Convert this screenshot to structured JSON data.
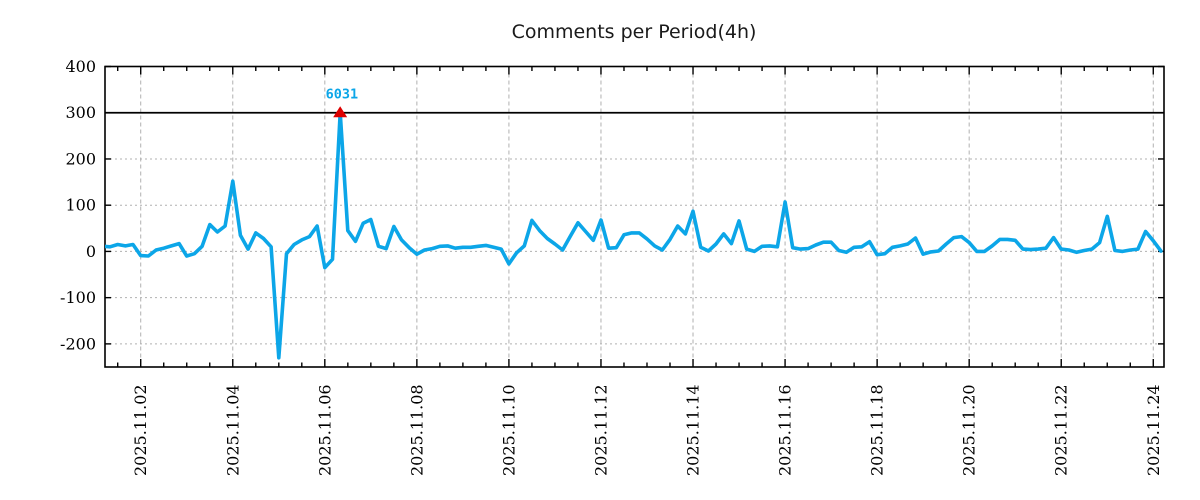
{
  "chart": {
    "title": "Comments per Period(4h)"
  },
  "chart_data": {
    "type": "line",
    "title": "Comments per Period(4h)",
    "series_name": "comments-per-4h",
    "start": "2025-11-01 04:00",
    "interval_hours": 4,
    "values": [
      11,
      10,
      15,
      12,
      15,
      -9,
      -10,
      3,
      7,
      12,
      17,
      -10,
      -5,
      11,
      58,
      42,
      55,
      152,
      35,
      5,
      40,
      28,
      10,
      -230,
      -5,
      15,
      25,
      32,
      55,
      -35,
      -17,
      300,
      45,
      22,
      61,
      69,
      11,
      6,
      54,
      25,
      8,
      -6,
      3,
      6,
      11,
      12,
      7,
      9,
      9,
      11,
      13,
      9,
      5,
      -27,
      -3,
      12,
      67,
      45,
      28,
      16,
      3,
      33,
      62,
      43,
      24,
      68,
      7,
      8,
      36,
      40,
      40,
      27,
      12,
      3,
      26,
      55,
      38,
      87,
      9,
      1,
      16,
      38,
      17,
      66,
      5,
      0,
      11,
      12,
      10,
      107,
      8,
      5,
      6,
      14,
      20,
      20,
      2,
      -2,
      9,
      10,
      21,
      -7,
      -5,
      9,
      12,
      16,
      29,
      -6,
      -1,
      1,
      16,
      30,
      32,
      19,
      0,
      0,
      12,
      26,
      26,
      24,
      5,
      4,
      5,
      7,
      30,
      5,
      3,
      -2,
      2,
      5,
      19,
      76,
      2,
      0,
      3,
      5,
      43,
      23,
      1
    ],
    "peak_annotation": {
      "index": 31,
      "true_value": 6031,
      "label": "6031",
      "clipped_at": 300,
      "marker": "red-triangle-up"
    },
    "hline_y": 300,
    "ylim": [
      -250,
      400
    ],
    "y_ticks": [
      -200,
      -100,
      0,
      100,
      200,
      300,
      400
    ],
    "x_tick_labels": [
      "2025.11.02",
      "2025.11.04",
      "2025.11.06",
      "2025.11.08",
      "2025.11.10",
      "2025.11.12",
      "2025.11.14",
      "2025.11.16",
      "2025.11.18",
      "2025.11.20",
      "2025.11.22",
      "2025.11.24"
    ],
    "x_tick_days": [
      1,
      3,
      5,
      7,
      9,
      11,
      13,
      15,
      17,
      19,
      21,
      23
    ],
    "x_domain_days": [
      0.224,
      23.233
    ],
    "x_minor_tick_step_days": 0.5,
    "grid": {
      "vertical": "dashed",
      "horizontal": "dotted"
    },
    "legend": "none",
    "colors": {
      "line": "#0ca6e8",
      "marker": "#dd0000",
      "annotation": "#0ca6e8",
      "grid": "#b0b0b0",
      "axis": "#000000",
      "hline": "#000000",
      "title": "#1a1a1a",
      "tick_label": "#000000",
      "background": "#ffffff"
    }
  }
}
